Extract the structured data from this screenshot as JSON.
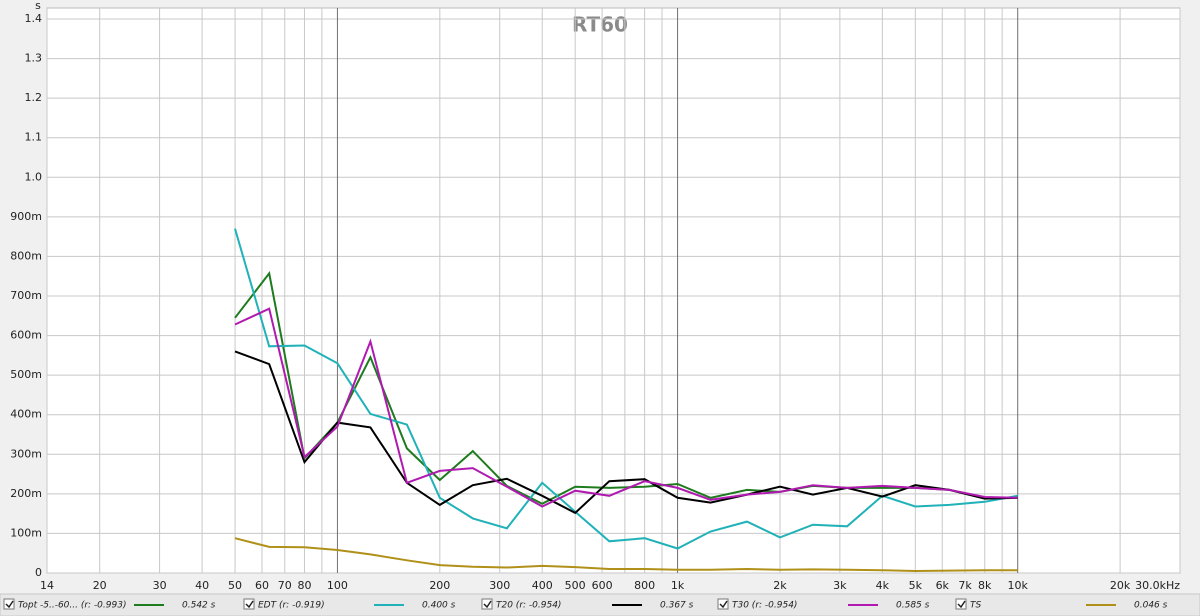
{
  "chart_data": {
    "type": "line",
    "title": "RT60",
    "y_label": "s",
    "x": [
      50,
      63,
      80,
      100,
      125,
      160,
      200,
      250,
      315,
      400,
      500,
      630,
      800,
      1000,
      1250,
      1600,
      2000,
      2500,
      3150,
      4000,
      5000,
      6300,
      8000,
      10000
    ],
    "series": [
      {
        "name": "Topt -5..-60... (r: -0.993)",
        "legend_value": "0.542 s",
        "color": "#1e7b1e",
        "text_color": "#333333",
        "values": [
          0.645,
          0.757,
          0.29,
          0.38,
          0.545,
          0.315,
          0.235,
          0.308,
          0.22,
          0.175,
          0.218,
          0.215,
          0.218,
          0.225,
          0.19,
          0.21,
          0.205,
          0.22,
          0.215,
          0.215,
          0.215,
          0.21,
          0.19,
          0.19
        ]
      },
      {
        "name": "EDT (r: -0.919)",
        "legend_value": "0.400 s",
        "color": "#20b2b8",
        "text_color": "#20a8b0",
        "values": [
          0.87,
          0.573,
          0.575,
          0.53,
          0.402,
          0.375,
          0.19,
          0.138,
          0.113,
          0.228,
          0.155,
          0.08,
          0.088,
          0.062,
          0.105,
          0.13,
          0.09,
          0.122,
          0.118,
          0.195,
          0.168,
          0.172,
          0.18,
          0.195
        ]
      },
      {
        "name": "T20 (r: -0.954)",
        "legend_value": "0.367 s",
        "color": "#000000",
        "text_color": "#000000",
        "values": [
          0.56,
          0.528,
          0.28,
          0.38,
          0.368,
          0.228,
          0.172,
          0.222,
          0.238,
          0.195,
          0.152,
          0.232,
          0.237,
          0.19,
          0.178,
          0.198,
          0.218,
          0.198,
          0.215,
          0.193,
          0.222,
          0.21,
          0.188,
          0.19
        ]
      },
      {
        "name": "T30 (r: -0.954)",
        "legend_value": "0.585 s",
        "color": "#b01ab0",
        "text_color": "#b01ab0",
        "values": [
          0.628,
          0.668,
          0.293,
          0.37,
          0.585,
          0.228,
          0.258,
          0.265,
          0.218,
          0.168,
          0.208,
          0.195,
          0.232,
          0.215,
          0.185,
          0.198,
          0.205,
          0.222,
          0.215,
          0.22,
          0.215,
          0.21,
          0.192,
          0.19
        ]
      },
      {
        "name": "TS",
        "legend_value": "0.046 s",
        "color": "#b09018",
        "text_color": "#b09018",
        "values": [
          0.088,
          0.066,
          0.065,
          0.058,
          0.047,
          0.032,
          0.02,
          0.016,
          0.014,
          0.018,
          0.015,
          0.01,
          0.01,
          0.008,
          0.008,
          0.01,
          0.008,
          0.009,
          0.008,
          0.007,
          0.005,
          0.006,
          0.007,
          0.007
        ]
      }
    ],
    "xlim": [
      14,
      30000
    ],
    "log_x": true,
    "xticks": [
      14,
      20,
      30,
      40,
      50,
      60,
      70,
      80,
      100,
      200,
      300,
      400,
      500,
      600,
      800,
      {
        "value": 1000,
        "label": "1k"
      },
      {
        "value": 2000,
        "label": "2k"
      },
      {
        "value": 3000,
        "label": "3k"
      },
      {
        "value": 4000,
        "label": "4k"
      },
      {
        "value": 5000,
        "label": "5k"
      },
      {
        "value": 6000,
        "label": "6k"
      },
      {
        "value": 7000,
        "label": "7k"
      },
      {
        "value": 8000,
        "label": "8k"
      },
      {
        "value": 10000,
        "label": "10k"
      },
      {
        "value": 20000,
        "label": "20k"
      },
      {
        "value": 30000,
        "label": "30.0kHz"
      }
    ],
    "x_minor_ticks": [
      90,
      700,
      900,
      9000
    ],
    "ylim": [
      0,
      1.4
    ],
    "yticks": [
      0,
      {
        "value": 0.1,
        "label": "100m"
      },
      {
        "value": 0.2,
        "label": "200m"
      },
      {
        "value": 0.3,
        "label": "300m"
      },
      {
        "value": 0.4,
        "label": "400m"
      },
      {
        "value": 0.5,
        "label": "500m"
      },
      {
        "value": 0.6,
        "label": "600m"
      },
      {
        "value": 0.7,
        "label": "700m"
      },
      {
        "value": 0.8,
        "label": "800m"
      },
      {
        "value": 0.9,
        "label": "900m"
      },
      {
        "value": 1,
        "label": "1.0"
      },
      1.1,
      1.2,
      1.3,
      1.4
    ],
    "grid": true
  }
}
